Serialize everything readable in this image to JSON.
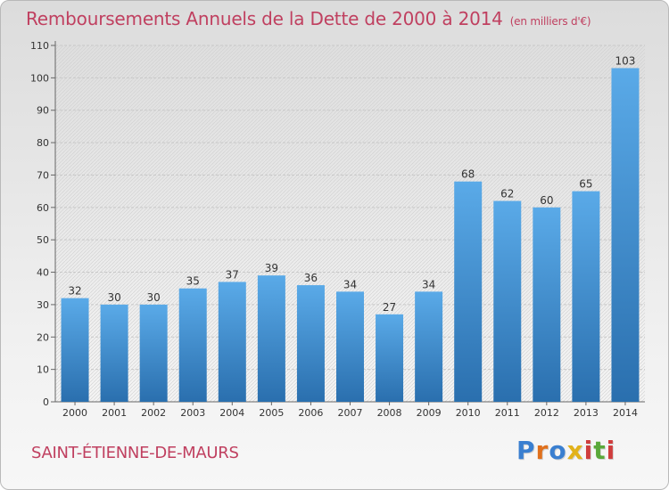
{
  "title": "Remboursements Annuels de la Dette de 2000 à 2014",
  "unit": "(en milliers d'€)",
  "city": "SAINT-ÉTIENNE-DE-MAURS",
  "logo": "Proxiti",
  "colors": {
    "title": "#c04060",
    "bar_top": "#5aaae8",
    "bar_bottom": "#2a6fae",
    "logo": [
      "#3a7fd0",
      "#e0701c",
      "#3a7fd0",
      "#e2b21a",
      "#cf3d3d",
      "#5aa83a",
      "#cf3d3d"
    ]
  },
  "chart_data": {
    "type": "bar",
    "title": "Remboursements Annuels de la Dette de 2000 à 2014",
    "xlabel": "",
    "ylabel": "",
    "categories": [
      "2000",
      "2001",
      "2002",
      "2003",
      "2004",
      "2005",
      "2006",
      "2007",
      "2008",
      "2009",
      "2010",
      "2011",
      "2012",
      "2013",
      "2014"
    ],
    "values": [
      32,
      30,
      30,
      35,
      37,
      39,
      36,
      34,
      27,
      34,
      68,
      62,
      60,
      65,
      103
    ],
    "ylim": [
      0,
      110
    ],
    "yticks": [
      0,
      10,
      20,
      30,
      40,
      50,
      60,
      70,
      80,
      90,
      100,
      110
    ],
    "grid": true
  }
}
